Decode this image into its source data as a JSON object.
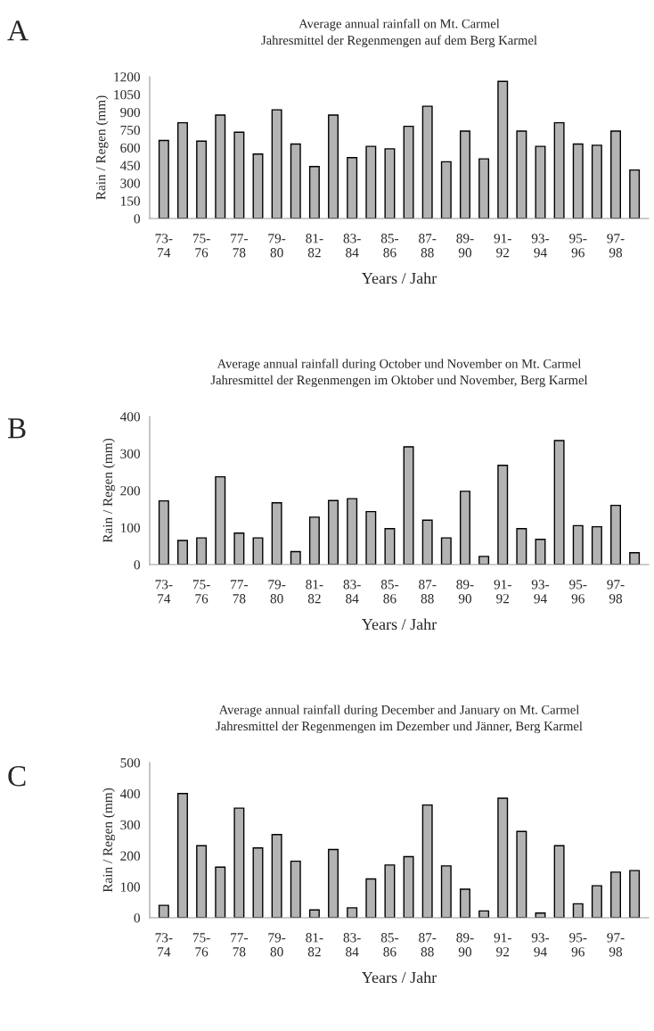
{
  "chart_data": [
    {
      "type": "bar",
      "title": "Average annual rainfall on Mt. Carmel\nJahresmittel der Regenmengen auf dem Berg Karmel",
      "xlabel": "Years / Jahr",
      "ylabel": "Rain / Regen (mm)",
      "annotations": [
        "A"
      ],
      "categories": [
        "73-\n74",
        null,
        "75-\n76",
        null,
        "77-\n78",
        null,
        "79-\n80",
        null,
        "81-\n82",
        null,
        "83-\n84",
        null,
        "85-\n86",
        null,
        "87-\n88",
        null,
        "89-\n90",
        null,
        "91-\n92",
        null,
        "93-\n94",
        null,
        "95-\n96",
        null,
        "97-\n98",
        null
      ],
      "values": [
        660,
        810,
        655,
        875,
        730,
        545,
        920,
        630,
        440,
        875,
        515,
        610,
        590,
        780,
        950,
        480,
        740,
        505,
        1160,
        740,
        610,
        810,
        630,
        620,
        740,
        410
      ],
      "color": "#b3b3b3",
      "ylim": [
        0,
        1200
      ],
      "yticks": [
        0,
        150,
        300,
        450,
        600,
        750,
        900,
        1050,
        1200
      ],
      "grid": false,
      "legend": false
    },
    {
      "type": "bar",
      "title": "Average annual rainfall during October und November on Mt. Carmel\nJahresmittel der Regenmengen im Oktober und November, Berg Karmel",
      "xlabel": "Years / Jahr",
      "ylabel": "Rain / Regen (mm)",
      "annotations": [
        "B"
      ],
      "categories": [
        "73-\n74",
        null,
        "75-\n76",
        null,
        "77-\n78",
        null,
        "79-\n80",
        null,
        "81-\n82",
        null,
        "83-\n84",
        null,
        "85-\n86",
        null,
        "87-\n88",
        null,
        "89-\n90",
        null,
        "91-\n92",
        null,
        "93-\n94",
        null,
        "95-\n96",
        null,
        "97-\n98",
        null
      ],
      "values": [
        172,
        65,
        72,
        237,
        85,
        72,
        167,
        35,
        128,
        173,
        178,
        143,
        97,
        318,
        120,
        72,
        198,
        22,
        268,
        97,
        68,
        335,
        105,
        102,
        160,
        32
      ],
      "color": "#b3b3b3",
      "ylim": [
        0,
        400
      ],
      "yticks": [
        0,
        100,
        200,
        300,
        400
      ],
      "grid": false,
      "legend": false
    },
    {
      "type": "bar",
      "title": "Average annual rainfall during December and January on Mt. Carmel\nJahresmittel der Regenmengen im Dezember und Jänner, Berg Karmel",
      "xlabel": "Years / Jahr",
      "ylabel": "Rain / Regen (mm)",
      "annotations": [
        "C"
      ],
      "categories": [
        "73-\n74",
        null,
        "75-\n76",
        null,
        "77-\n78",
        null,
        "79-\n80",
        null,
        "81-\n82",
        null,
        "83-\n84",
        null,
        "85-\n86",
        null,
        "87-\n88",
        null,
        "89-\n90",
        null,
        "91-\n92",
        null,
        "93-\n94",
        null,
        "95-\n96",
        null,
        "97-\n98",
        null
      ],
      "values": [
        40,
        400,
        232,
        163,
        353,
        225,
        268,
        182,
        25,
        220,
        32,
        125,
        170,
        197,
        363,
        167,
        92,
        22,
        385,
        278,
        15,
        232,
        45,
        103,
        147,
        152
      ],
      "color": "#b3b3b3",
      "ylim": [
        0,
        500
      ],
      "yticks": [
        0,
        100,
        200,
        300,
        400,
        500
      ],
      "grid": false,
      "legend": false
    }
  ]
}
